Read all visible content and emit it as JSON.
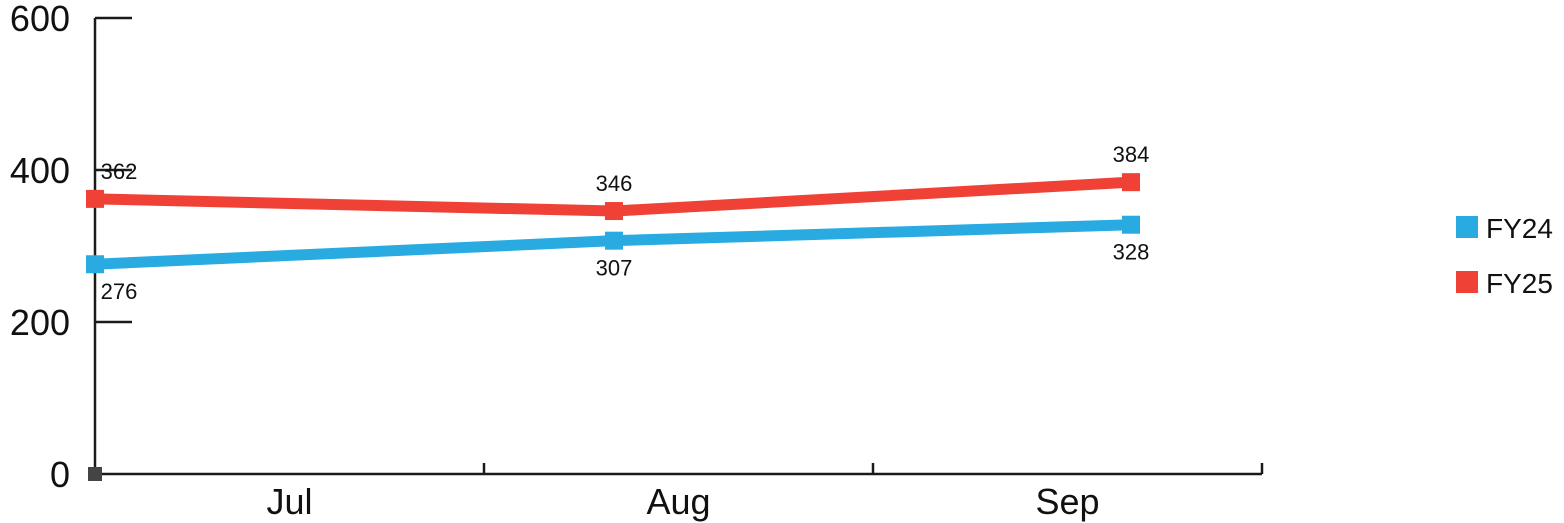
{
  "chart_data": {
    "type": "line",
    "categories": [
      "Jul",
      "Aug",
      "Sep"
    ],
    "series": [
      {
        "name": "FY24",
        "values": [
          276,
          307,
          328
        ],
        "color": "#29abe2",
        "label_position": "below"
      },
      {
        "name": "FY25",
        "values": [
          362,
          346,
          384
        ],
        "color": "#ef4136",
        "label_position": "above"
      }
    ],
    "ylim": [
      0,
      600
    ],
    "yticks": [
      0,
      200,
      400,
      600
    ],
    "ytick_labels": [
      "0",
      "200",
      "400",
      "600"
    ],
    "title": "",
    "xlabel": "",
    "ylabel": "",
    "legend": "right",
    "grid": false,
    "axis_color": "#1a1a1a",
    "origin_marker_color": "#444444"
  }
}
